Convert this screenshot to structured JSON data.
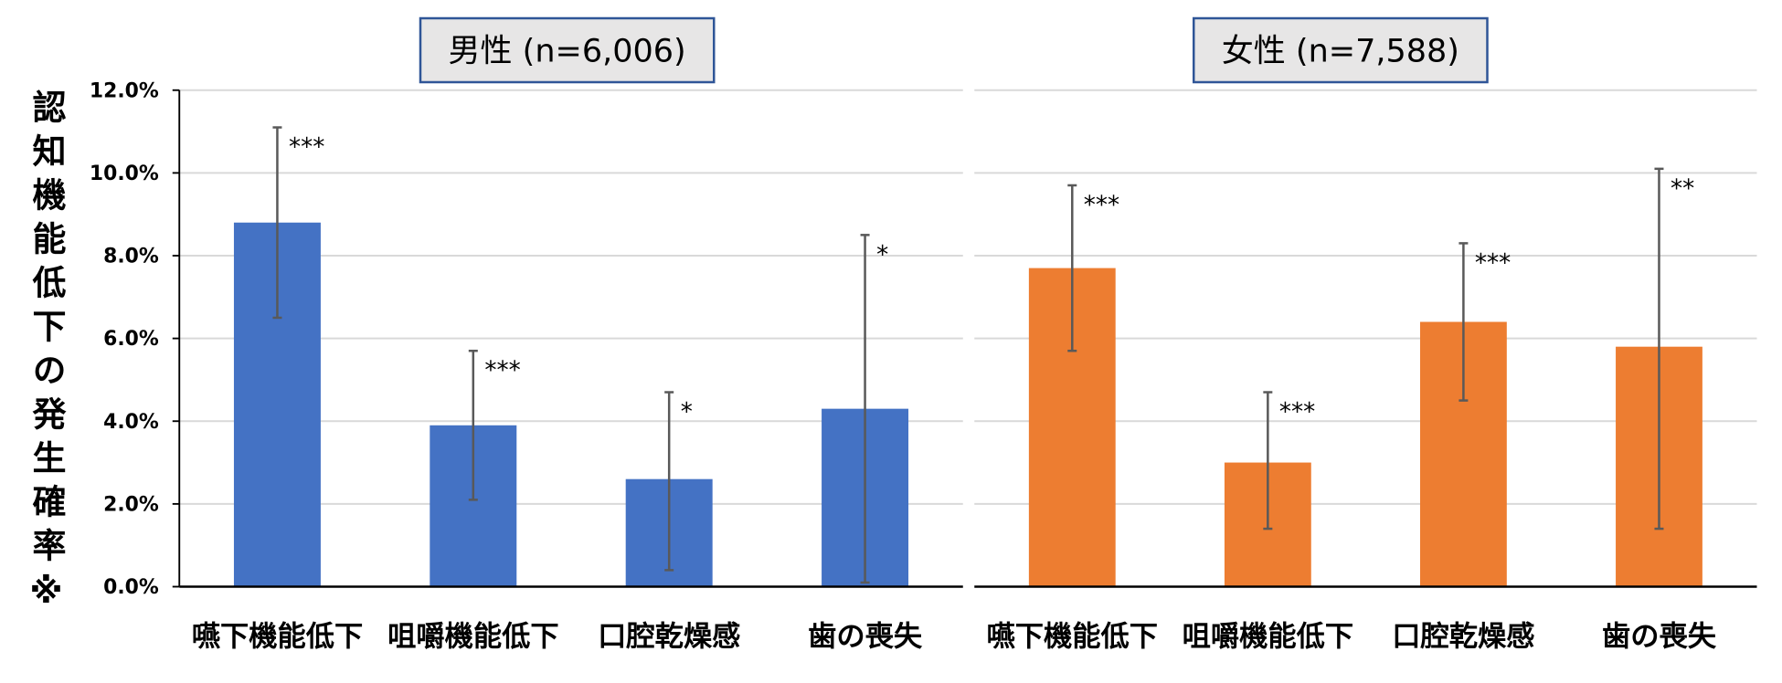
{
  "chart_data": [
    {
      "type": "bar",
      "title": "男性 (n=6,006)",
      "ylabel": "認知機能低下の発生確率※",
      "ytick_labels": [
        "0.0%",
        "2.0%",
        "4.0%",
        "6.0%",
        "8.0%",
        "10.0%",
        "12.0%"
      ],
      "ylim": [
        0,
        12
      ],
      "grid": true,
      "categories": [
        "嚥下機能低下",
        "咀嚼機能低下",
        "口腔乾燥感",
        "歯の喪失"
      ],
      "values": [
        8.8,
        3.9,
        2.6,
        4.3
      ],
      "error_low": [
        6.5,
        2.1,
        0.4,
        0.1
      ],
      "error_high": [
        11.1,
        5.7,
        4.7,
        8.5
      ],
      "significance": [
        "***",
        "***",
        "*",
        "*"
      ],
      "bar_color": "#4472C4"
    },
    {
      "type": "bar",
      "title": "女性 (n=7,588)",
      "ylim": [
        0,
        12
      ],
      "grid": true,
      "categories": [
        "嚥下機能低下",
        "咀嚼機能低下",
        "口腔乾燥感",
        "歯の喪失"
      ],
      "values": [
        7.7,
        3.0,
        6.4,
        5.8
      ],
      "error_low": [
        5.7,
        1.4,
        4.5,
        1.4
      ],
      "error_high": [
        9.7,
        4.7,
        8.3,
        10.1
      ],
      "significance": [
        "***",
        "***",
        "***",
        "**"
      ],
      "bar_color": "#ED7D31"
    }
  ]
}
